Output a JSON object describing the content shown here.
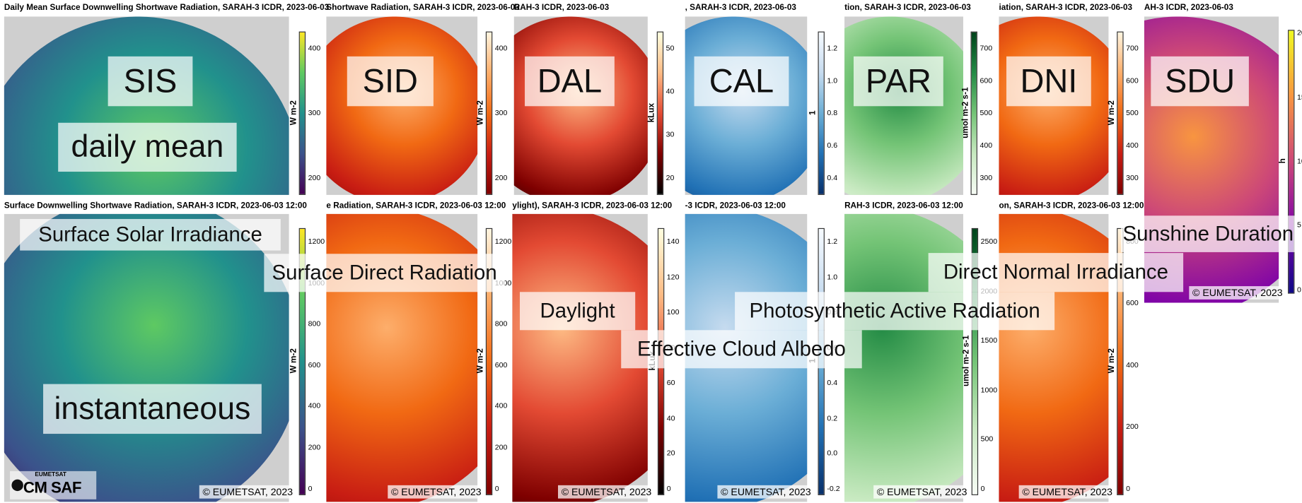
{
  "top_row": [
    {
      "title": "Daily Mean Surface Downwelling Shortwave Radiation, SARAH-3 ICDR, 2023-06-03",
      "colorbar": {
        "ticks": [
          200,
          300,
          400
        ],
        "label": "W m-2"
      }
    },
    {
      "title": "Shortwave Radiation, SARAH-3 ICDR, 2023-06-03",
      "colorbar": {
        "ticks": [
          200,
          300,
          400
        ],
        "label": "W m-2"
      }
    },
    {
      "title": "RAH-3 ICDR, 2023-06-03",
      "colorbar": {
        "ticks": [
          20,
          30,
          40,
          50
        ],
        "label": "kLux"
      }
    },
    {
      "title": ", SARAH-3 ICDR, 2023-06-03",
      "colorbar": {
        "ticks": [
          "0.4",
          "0.6",
          "0.8",
          "1.0",
          "1.2"
        ],
        "label": "1"
      }
    },
    {
      "title": "tion, SARAH-3 ICDR, 2023-06-03",
      "colorbar": {
        "ticks": [
          300,
          400,
          500,
          600,
          700
        ],
        "label": "umol m-2 s-1"
      }
    },
    {
      "title": "iation, SARAH-3 ICDR, 2023-06-03",
      "colorbar": {
        "ticks": [
          300,
          400,
          500,
          600,
          700
        ],
        "label": "W m-2"
      }
    },
    {
      "title": "AH-3 ICDR, 2023-06-03",
      "colorbar": {
        "ticks": [
          0,
          5,
          10,
          15,
          20
        ],
        "label": "h"
      },
      "copyright": "© EUMETSAT, 2023"
    }
  ],
  "bottom_row": [
    {
      "title": "Surface Downwelling Shortwave Radiation, SARAH-3 ICDR, 2023-06-03 12:00",
      "colorbar": {
        "ticks": [
          0,
          200,
          400,
          600,
          800,
          1000,
          1200
        ],
        "label": "W m-2"
      },
      "copyright": "© EUMETSAT, 2023"
    },
    {
      "title": "e Radiation, SARAH-3 ICDR, 2023-06-03 12:00",
      "colorbar": {
        "ticks": [
          0,
          200,
          400,
          600,
          800,
          1000,
          1200
        ],
        "label": "W m-2"
      },
      "copyright": "© EUMETSAT, 2023"
    },
    {
      "title": "ylight), SARAH-3 ICDR, 2023-06-03 12:00",
      "colorbar": {
        "ticks": [
          0,
          20,
          40,
          60,
          80,
          100,
          120,
          140
        ],
        "label": "kLux"
      },
      "copyright": "© EUMETSAT, 2023"
    },
    {
      "title": "-3 ICDR, 2023-06-03 12:00",
      "colorbar": {
        "ticks": [
          "-0.2",
          "0.0",
          "0.2",
          "0.4",
          "0.6",
          "0.8",
          "1.0",
          "1.2"
        ],
        "label": "1"
      },
      "copyright": "© EUMETSAT, 2023"
    },
    {
      "title": "RAH-3 ICDR, 2023-06-03 12:00",
      "colorbar": {
        "ticks": [
          0,
          500,
          1000,
          1500,
          2000,
          2500
        ],
        "label": "umol m-2 s-1"
      },
      "copyright": "© EUMETSAT, 2023"
    },
    {
      "title": "on, SARAH-3 ICDR, 2023-06-03 12:00",
      "colorbar": {
        "ticks": [
          0,
          200,
          400,
          600,
          800
        ],
        "label": "W m-2"
      },
      "copyright": "© EUMETSAT, 2023"
    }
  ],
  "overlays": [
    "SIS",
    "SID",
    "DAL",
    "CAL",
    "PAR",
    "DNI",
    "SDU",
    "daily mean",
    "Surface Solar Irradiance",
    "Surface Direct Radiation",
    "Direct Normal Irradiance",
    "Sunshine Duration",
    "Daylight",
    "Photosynthetic Active Radiation",
    "Effective Cloud Albedo",
    "instantaneous"
  ],
  "logo": {
    "org": "EUMETSAT",
    "name": "CM SAF"
  }
}
